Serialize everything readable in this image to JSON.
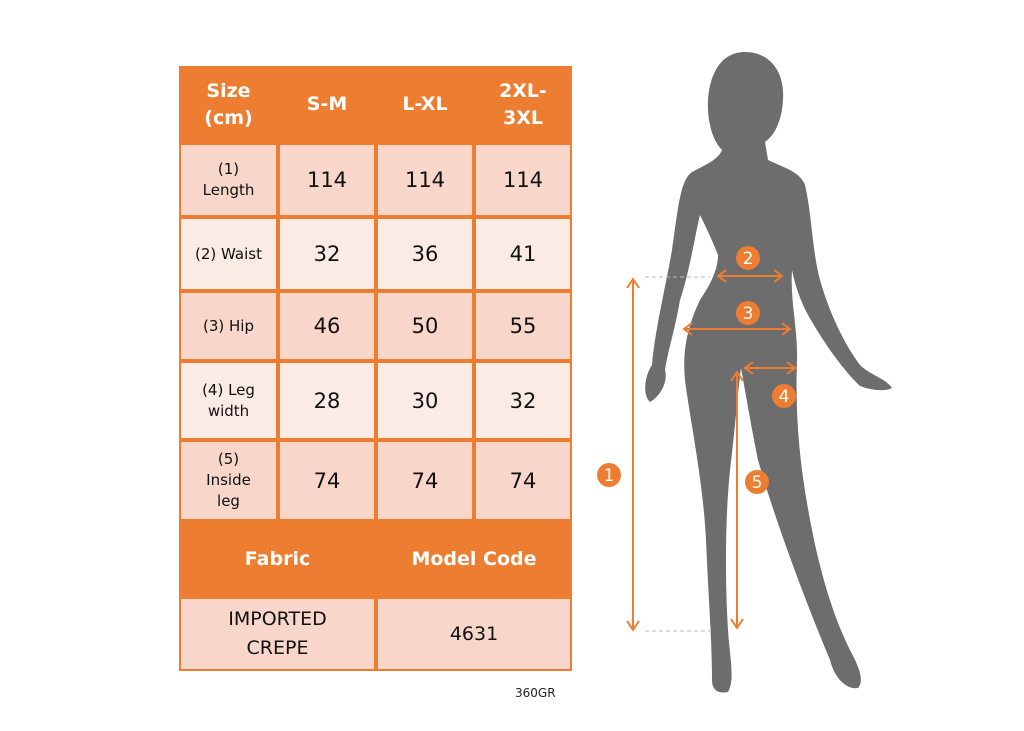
{
  "table": {
    "headers": [
      "Size\n(cm)",
      "S-M",
      "L-XL",
      "2XL-\n3XL"
    ],
    "rows": [
      {
        "label": "(1)\nLength",
        "values": [
          "114",
          "114",
          "114"
        ]
      },
      {
        "label": "(2) Waist",
        "values": [
          "32",
          "36",
          "41"
        ]
      },
      {
        "label": "(3) Hip",
        "values": [
          "46",
          "50",
          "55"
        ]
      },
      {
        "label": "(4) Leg\nwidth",
        "values": [
          "28",
          "30",
          "32"
        ]
      },
      {
        "label": "(5)\nInside\nleg",
        "values": [
          "74",
          "74",
          "74"
        ]
      }
    ],
    "fabric_header": "Fabric",
    "model_code_header": "Model Code",
    "fabric_value": "IMPORTED\nCREPE",
    "model_code_value": "4631"
  },
  "weight_code": "360GR",
  "diagram": {
    "markers": [
      "1",
      "2",
      "3",
      "4",
      "5"
    ]
  },
  "colors": {
    "accent": "#ed7d31",
    "silhouette": "#6d6d6d",
    "row_dark": "#f8d6c9",
    "row_light": "#fbebe5"
  }
}
